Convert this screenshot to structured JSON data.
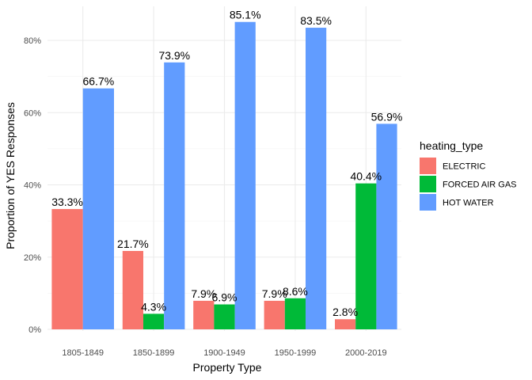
{
  "chart_data": {
    "type": "bar",
    "xlabel": "Property Type",
    "ylabel": "Proportion of YES Responses",
    "categories": [
      "1805-1849",
      "1850-1899",
      "1900-1949",
      "1950-1999",
      "2000-2019"
    ],
    "ylim": [
      0,
      0.9
    ],
    "yticks": [
      0,
      0.2,
      0.4,
      0.6,
      0.8
    ],
    "ytick_labels": [
      "0%",
      "20%",
      "40%",
      "60%",
      "80%"
    ],
    "grid": true,
    "legend": {
      "title": "heating_type",
      "position": "right"
    },
    "series": [
      {
        "name": "ELECTRIC",
        "color": "#F8766D",
        "values": [
          0.333,
          0.217,
          0.079,
          0.079,
          0.028
        ],
        "labels": [
          "33.3%",
          "21.7%",
          "7.9%",
          "7.9%",
          "2.8%"
        ]
      },
      {
        "name": "FORCED AIR GAS",
        "color": "#00BA38",
        "values": [
          null,
          0.043,
          0.069,
          0.086,
          0.404
        ],
        "labels": [
          null,
          "4.3%",
          "6.9%",
          "8.6%",
          "40.4%"
        ]
      },
      {
        "name": "HOT WATER",
        "color": "#619CFF",
        "values": [
          0.667,
          0.739,
          0.851,
          0.835,
          0.569
        ],
        "labels": [
          "66.7%",
          "73.9%",
          "85.1%",
          "83.5%",
          "56.9%"
        ]
      }
    ]
  }
}
